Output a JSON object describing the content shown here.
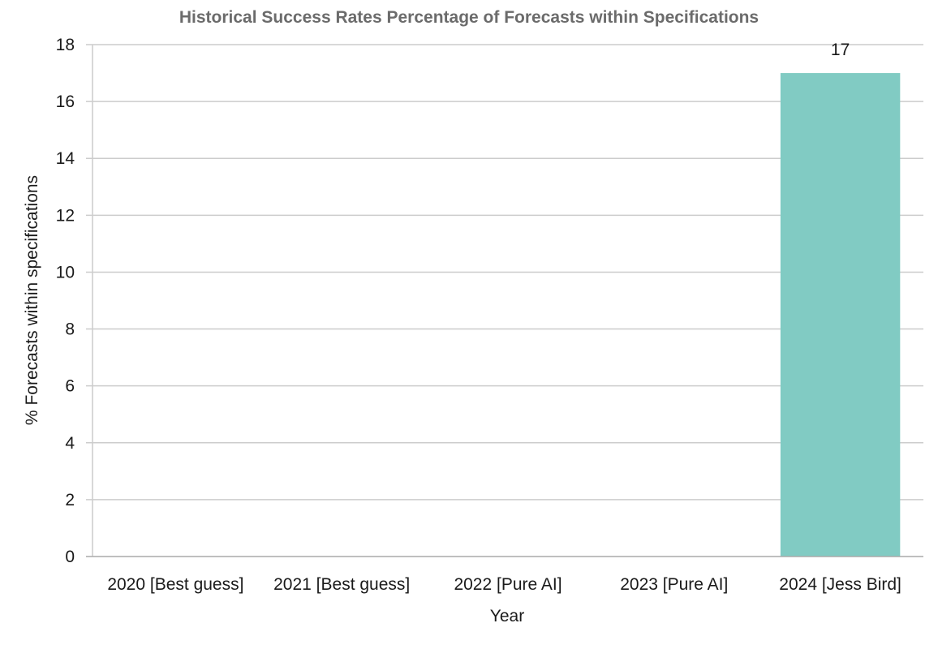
{
  "chart_data": {
    "type": "bar",
    "title": "Historical Success Rates Percentage of Forecasts within Specifications",
    "xlabel": "Year",
    "ylabel": "% Forecasts within specifications",
    "categories": [
      "2020 [Best guess]",
      "2021 [Best guess]",
      "2022 [Pure AI]",
      "2023 [Pure AI]",
      "2024 [Jess Bird]"
    ],
    "values": [
      0,
      0,
      0,
      0,
      17
    ],
    "data_labels": [
      "",
      "",
      "",
      "",
      "17"
    ],
    "ylim": [
      0,
      18
    ],
    "yticks": [
      0,
      2,
      4,
      6,
      8,
      10,
      12,
      14,
      16,
      18
    ],
    "grid": true,
    "legend": "none",
    "bar_color": "#81cbc3",
    "title_color": "#6b6b6b"
  }
}
